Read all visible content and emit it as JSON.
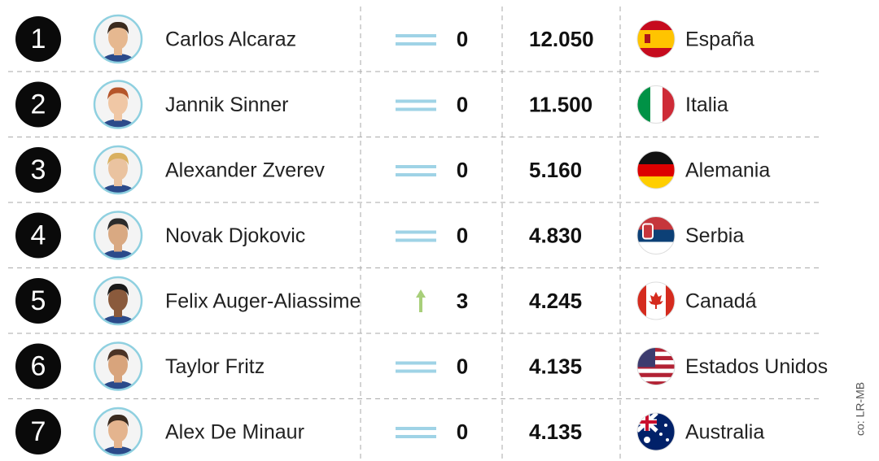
{
  "rows": [
    {
      "rank": "1",
      "name": "Carlos Alcaraz",
      "change": 0,
      "points": "12.050",
      "country": "España"
    },
    {
      "rank": "2",
      "name": "Jannik Sinner",
      "change": 0,
      "points": "11.500",
      "country": "Italia"
    },
    {
      "rank": "3",
      "name": "Alexander Zverev",
      "change": 0,
      "points": "5.160",
      "country": "Alemania"
    },
    {
      "rank": "4",
      "name": "Novak Djokovic",
      "change": 0,
      "points": "4.830",
      "country": "Serbia"
    },
    {
      "rank": "5",
      "name": "Felix Auger-Aliassime",
      "change": 3,
      "points": "4.245",
      "country": "Canadá"
    },
    {
      "rank": "6",
      "name": "Taylor Fritz",
      "change": 0,
      "points": "4.135",
      "country": "Estados Unidos"
    },
    {
      "rank": "7",
      "name": "Alex De Minaur",
      "change": 0,
      "points": "4.135",
      "country": "Australia"
    }
  ],
  "credit": "co: LR-MB"
}
